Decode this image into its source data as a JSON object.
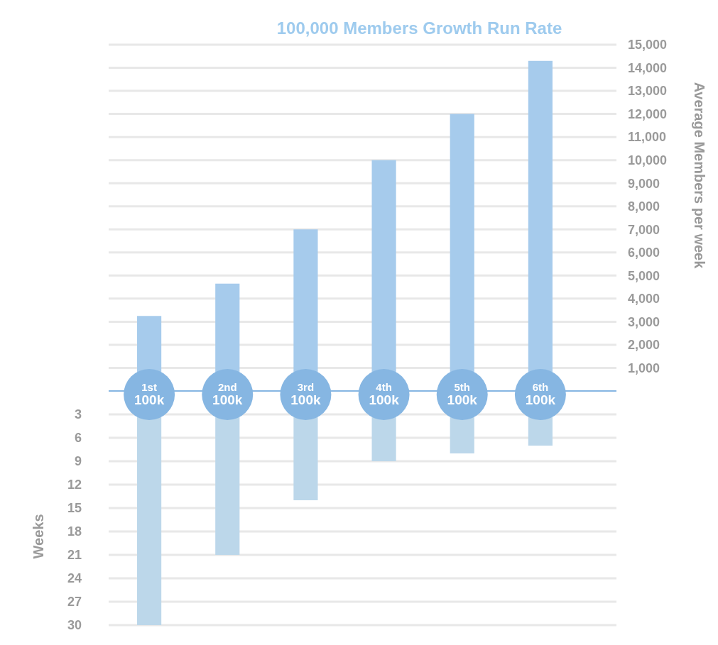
{
  "chart_data": [
    {
      "type": "bar",
      "title": "100,000 Members Growth Run Rate",
      "ylabel": "Average Members per week",
      "categories": [
        "1st 100k",
        "2nd 100k",
        "3rd 100k",
        "4th 100k",
        "5th 100k",
        "6th 100k"
      ],
      "values": [
        3250,
        4650,
        7000,
        10000,
        12000,
        14300
      ],
      "color": "#a6cbec",
      "ylim": [
        0,
        15000
      ],
      "yticks": [
        {
          "value": 1000,
          "label": "1,000"
        },
        {
          "value": 2000,
          "label": "2,000"
        },
        {
          "value": 3000,
          "label": "3,000"
        },
        {
          "value": 4000,
          "label": "4,000"
        },
        {
          "value": 5000,
          "label": "5,000"
        },
        {
          "value": 6000,
          "label": "6,000"
        },
        {
          "value": 7000,
          "label": "7,000"
        },
        {
          "value": 8000,
          "label": "8,000"
        },
        {
          "value": 9000,
          "label": "9,000"
        },
        {
          "value": 10000,
          "label": "10,000"
        },
        {
          "value": 11000,
          "label": "11,000"
        },
        {
          "value": 12000,
          "label": "12,000"
        },
        {
          "value": 13000,
          "label": "13,000"
        },
        {
          "value": 14000,
          "label": "14,000"
        },
        {
          "value": 15000,
          "label": "15,000"
        }
      ],
      "grid": "y"
    },
    {
      "type": "bar",
      "ylabel": "Weeks",
      "categories": [
        null,
        null,
        null,
        null,
        null,
        null
      ],
      "values": [
        30,
        21,
        14,
        9,
        8,
        7
      ],
      "color": "#bcd7ea",
      "ylim": [
        30,
        0
      ],
      "yticks": [
        3,
        6,
        9,
        12,
        15,
        18,
        21,
        24,
        27,
        30
      ],
      "grid": "y",
      "tick_labels": "y"
    }
  ]
}
